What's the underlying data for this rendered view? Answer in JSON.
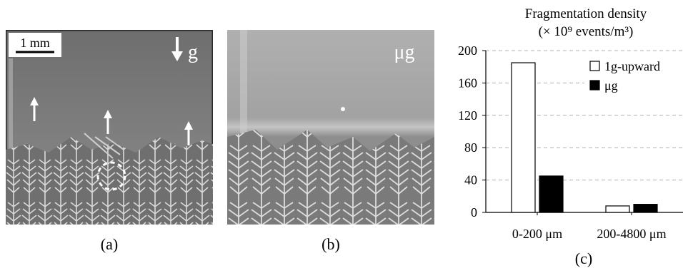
{
  "panels": {
    "a": {
      "label": "(a)",
      "scale_bar": "1 mm",
      "gravity_label": "g"
    },
    "b": {
      "label": "(b)",
      "gravity_label": "μg"
    },
    "c": {
      "label": "(c)"
    }
  },
  "chart_data": {
    "type": "bar",
    "title": "Fragmentation density",
    "subtitle": "(× 10⁹ events/m³)",
    "categories": [
      "0-200 μm",
      "200-4800 μm"
    ],
    "series": [
      {
        "name": "1g-upward",
        "values": [
          185,
          8
        ],
        "color": "#ffffff"
      },
      {
        "name": "μg",
        "values": [
          45,
          10
        ],
        "color": "#000000"
      }
    ],
    "ylim": [
      0,
      200
    ],
    "yticks": [
      0,
      40,
      80,
      120,
      160,
      200
    ],
    "grid": true,
    "legend_position": "top-right"
  },
  "colors": {
    "photo_bg": "#8a8a8a",
    "dendrite": "#d4d4d4",
    "gridline": "#b0b0b0"
  }
}
